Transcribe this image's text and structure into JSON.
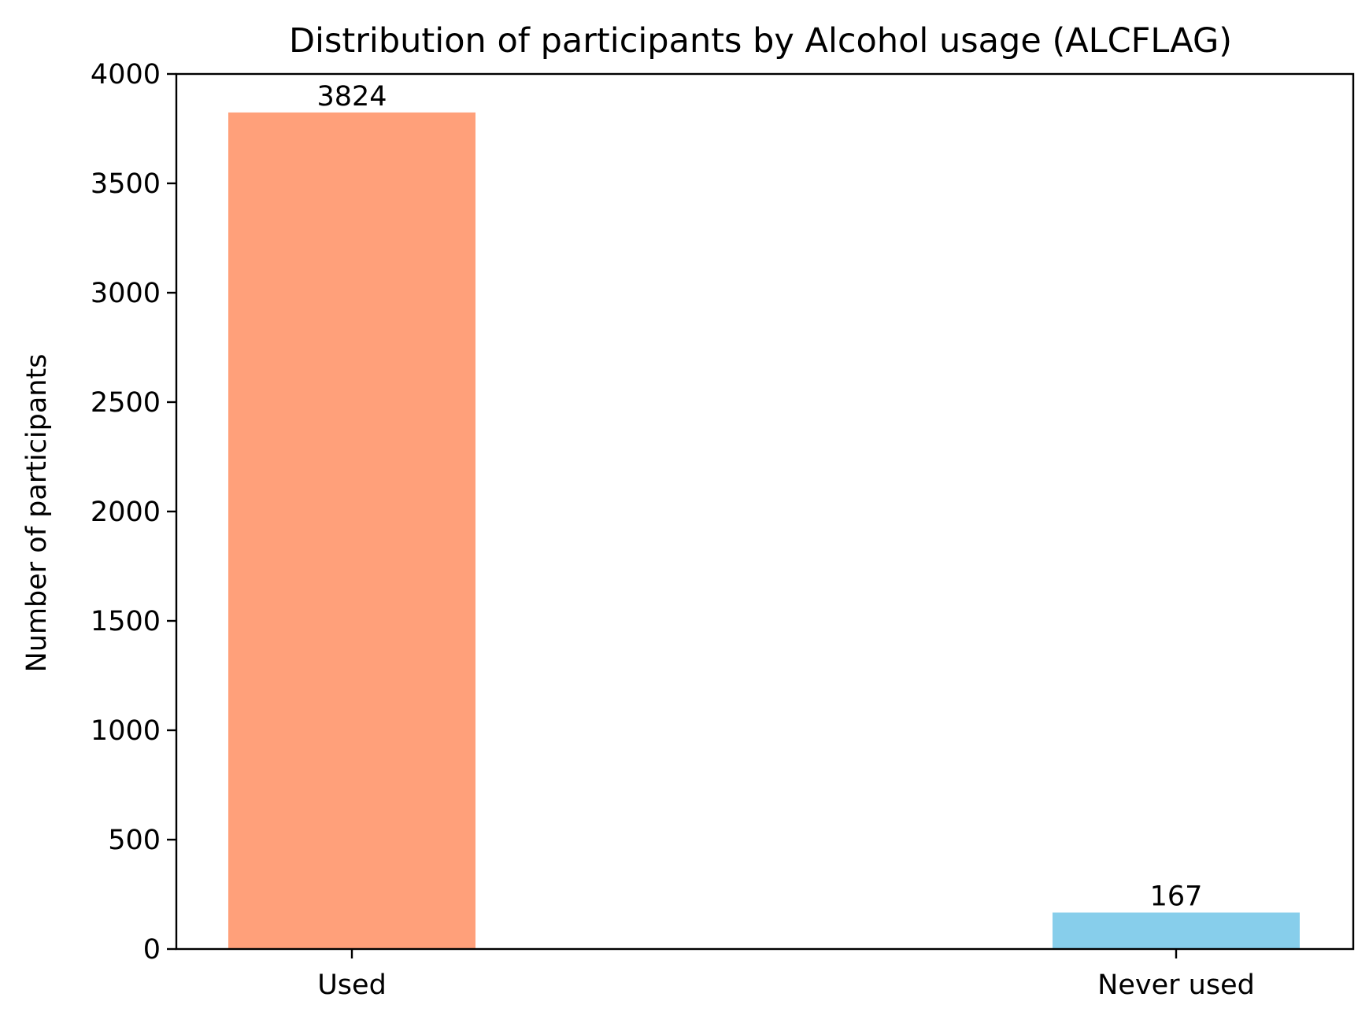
{
  "chart_data": {
    "type": "bar",
    "title": "Distribution of participants by Alcohol usage (ALCFLAG)",
    "xlabel": "",
    "ylabel": "Number of participants",
    "categories": [
      "Used",
      "Never used"
    ],
    "values": [
      3824,
      167
    ],
    "data_labels": [
      "3824",
      "167"
    ],
    "bar_colors": [
      "#FFA07A",
      "#87CEEB"
    ],
    "ylim": [
      0,
      4000
    ],
    "yticks": [
      0,
      500,
      1000,
      1500,
      2000,
      2500,
      3000,
      3500,
      4000
    ],
    "grid": false,
    "legend": "none"
  }
}
